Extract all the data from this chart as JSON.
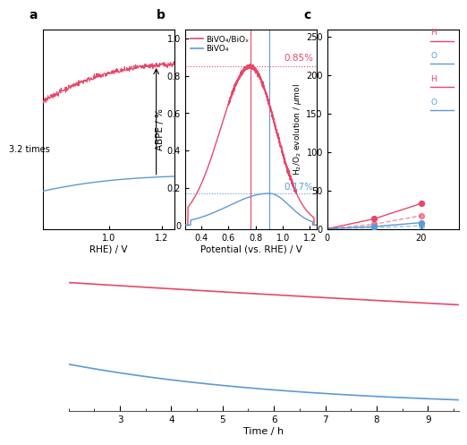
{
  "panel_b": {
    "xlabel": "Potential (vs. RHE) / V",
    "ylabel": "ABPE / %",
    "xlim": [
      0.28,
      1.25
    ],
    "ylim": [
      -0.02,
      1.05
    ],
    "xticks": [
      0.4,
      0.6,
      0.8,
      1.0,
      1.2
    ],
    "yticks": [
      0.0,
      0.2,
      0.4,
      0.6,
      0.8,
      1.0
    ],
    "color_red": "#E8476A",
    "color_blue": "#5B9BD5",
    "legend_red": "BiVO₄/BiOₓ",
    "legend_blue": "BiVO₄",
    "peak_red_x": 0.76,
    "peak_red_y": 0.85,
    "peak_blue_x": 0.9,
    "peak_blue_y": 0.17,
    "label_red": "0.85%",
    "label_blue": "0.17%"
  },
  "panel_a": {
    "color_red": "#E8476A",
    "color_blue": "#5B9BD5",
    "xlim": [
      0.75,
      1.25
    ],
    "ylim": [
      -0.05,
      3.8
    ],
    "xticks": [
      1.0,
      1.2
    ],
    "xlabel": "RHE) / V",
    "annotation": "3.2 times"
  },
  "panel_c": {
    "color_red": "#E8476A",
    "color_blue": "#5B9BD5",
    "xlim": [
      0,
      28
    ],
    "ylim": [
      0,
      260
    ],
    "yticks": [
      0,
      50,
      100,
      150,
      200,
      250
    ],
    "xticks": [
      0,
      20
    ],
    "ylabel": "H$_2$/O$_2$ evolution / $\\mu$mol",
    "legend": [
      "H",
      "O",
      "H",
      "O"
    ]
  },
  "panel_d": {
    "xlabel": "Time / h",
    "xlim": [
      2.0,
      9.6
    ],
    "ylim": [
      0.0,
      1.0
    ],
    "xticks": [
      3,
      4,
      5,
      6,
      7,
      8,
      9
    ],
    "color_red": "#E8476A",
    "color_blue": "#5B9BD5",
    "red_start": 0.82,
    "red_end": 0.68,
    "blue_start": 0.3,
    "blue_end": 0.07
  }
}
